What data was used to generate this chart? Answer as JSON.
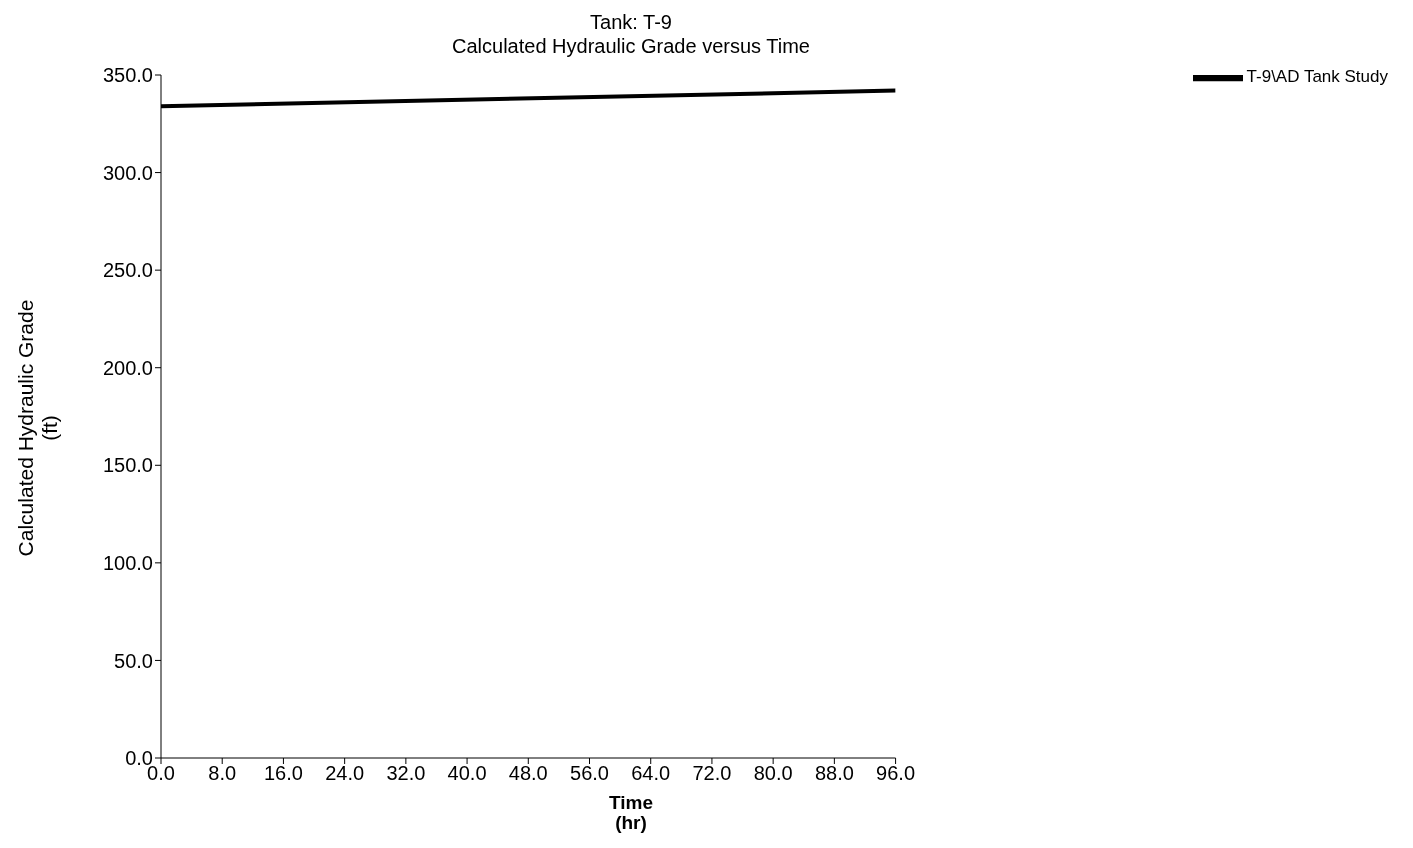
{
  "chart_data": {
    "type": "line",
    "title": "Tank: T-9",
    "subtitle": "Calculated Hydraulic Grade versus Time",
    "xlabel": "Time\n(hr)",
    "ylabel": "Calculated Hydraulic Grade\n(ft)",
    "x": [
      0,
      96
    ],
    "series": [
      {
        "name": "T-9\\AD Tank Study",
        "color": "#000000",
        "values": [
          334,
          342
        ]
      }
    ],
    "xlim": [
      0,
      96
    ],
    "xticks": [
      {
        "value": 0,
        "label": "0.0"
      },
      {
        "value": 8,
        "label": "8.0"
      },
      {
        "value": 16,
        "label": "16.0"
      },
      {
        "value": 24,
        "label": "24.0"
      },
      {
        "value": 32,
        "label": "32.0"
      },
      {
        "value": 40,
        "label": "40.0"
      },
      {
        "value": 48,
        "label": "48.0"
      },
      {
        "value": 56,
        "label": "56.0"
      },
      {
        "value": 64,
        "label": "64.0"
      },
      {
        "value": 72,
        "label": "72.0"
      },
      {
        "value": 80,
        "label": "80.0"
      },
      {
        "value": 88,
        "label": "88.0"
      },
      {
        "value": 96,
        "label": "96.0"
      }
    ],
    "ylim": [
      0,
      350
    ],
    "yticks": [
      {
        "value": 0,
        "label": "0.0"
      },
      {
        "value": 50,
        "label": "50.0"
      },
      {
        "value": 100,
        "label": "100.0"
      },
      {
        "value": 150,
        "label": "150.0"
      },
      {
        "value": 200,
        "label": "200.0"
      },
      {
        "value": 250,
        "label": "250.0"
      },
      {
        "value": 300,
        "label": "300.0"
      },
      {
        "value": 350,
        "label": "350.0"
      }
    ],
    "grid": false,
    "legend": "top right",
    "marker": "none",
    "line_style": "solid"
  }
}
